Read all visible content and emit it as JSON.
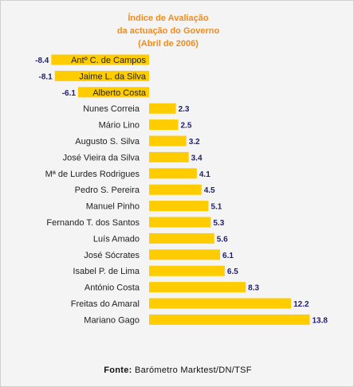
{
  "title": {
    "line1": "Índice de Avaliação",
    "line2": "da actuação do Governo",
    "line3": "(Abril de 2006)"
  },
  "source": {
    "label": "Fonte:",
    "text": "Barómetro Marktest/DN/TSF"
  },
  "colors": {
    "bar": "#ffcc00",
    "title": "#f08c1e",
    "value": "#1f1f6e"
  },
  "chart_data": {
    "type": "bar",
    "orientation": "horizontal",
    "title": "Índice de Avaliação da actuação do Governo (Abril de 2006)",
    "xlabel": "",
    "ylabel": "",
    "grid": false,
    "legend": "none",
    "categories": [
      "Antº C. de Campos",
      "Jaime L. da Silva",
      "Alberto Costa",
      "Nunes Correia",
      "Mário Lino",
      "Augusto S. Silva",
      "José Vieira da Silva",
      "Mª de Lurdes Rodrigues",
      "Pedro S. Pereira",
      "Manuel Pinho",
      "Fernando T. dos Santos",
      "Luís Amado",
      "José Sócrates",
      "Isabel P. de Lima",
      "António Costa",
      "Freitas do Amaral",
      "Mariano Gago"
    ],
    "values": [
      -8.4,
      -8.1,
      -6.1,
      2.3,
      2.5,
      3.2,
      3.4,
      4.1,
      4.5,
      5.1,
      5.3,
      5.6,
      6.1,
      6.5,
      8.3,
      12.2,
      13.8
    ],
    "value_labels": [
      "-8.4",
      "-8.1",
      "-6.1",
      "2.3",
      "2.5",
      "3.2",
      "3.4",
      "4.1",
      "4.5",
      "5.1",
      "5.3",
      "5.6",
      "6.1",
      "6.5",
      "8.3",
      "12.2",
      "13.8"
    ]
  }
}
